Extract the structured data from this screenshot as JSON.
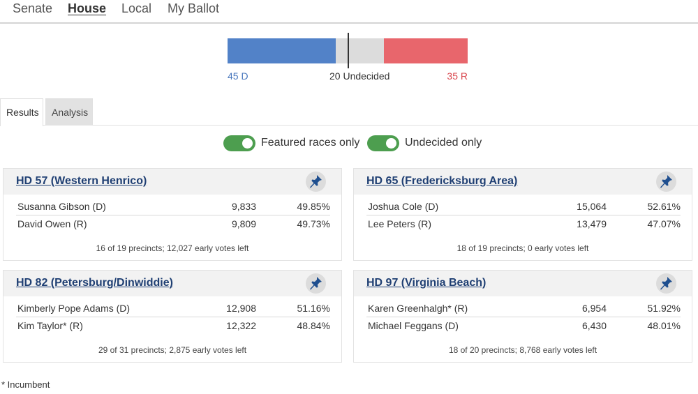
{
  "nav": {
    "items": [
      {
        "label": "Senate"
      },
      {
        "label": "House"
      },
      {
        "label": "Local"
      },
      {
        "label": "My Ballot"
      }
    ],
    "active": "House"
  },
  "balance": {
    "dem_seats": 45,
    "undecided_seats": 20,
    "rep_seats": 35,
    "total_seats": 100,
    "dem_label": "45 D",
    "undecided_label": "20 Undecided",
    "rep_label": "35 R",
    "colors": {
      "dem": "#5282c8",
      "undecided": "#dcdcdc",
      "rep": "#e8666c"
    }
  },
  "tabs": [
    {
      "label": "Results",
      "active": true
    },
    {
      "label": "Analysis",
      "active": false
    }
  ],
  "filters": {
    "featured_label": "Featured races only",
    "featured_on": true,
    "undecided_label": "Undecided only",
    "undecided_on": true,
    "toggle_color": "#4d9e4f"
  },
  "races": [
    {
      "title": "HD 57 (Western Henrico)",
      "candidates": [
        {
          "name": "Susanna Gibson (D)",
          "votes": "9,833",
          "pct": "49.85%"
        },
        {
          "name": "David Owen (R)",
          "votes": "9,809",
          "pct": "49.73%"
        }
      ],
      "footer": "16 of 19 precincts; 12,027 early votes left"
    },
    {
      "title": "HD 65 (Fredericksburg Area)",
      "candidates": [
        {
          "name": "Joshua Cole (D)",
          "votes": "15,064",
          "pct": "52.61%"
        },
        {
          "name": "Lee Peters (R)",
          "votes": "13,479",
          "pct": "47.07%"
        }
      ],
      "footer": "18 of 19 precincts; 0 early votes left"
    },
    {
      "title": "HD 82 (Petersburg/Dinwiddie)",
      "candidates": [
        {
          "name": "Kimberly Pope Adams (D)",
          "votes": "12,908",
          "pct": "51.16%"
        },
        {
          "name": "Kim Taylor* (R)",
          "votes": "12,322",
          "pct": "48.84%"
        }
      ],
      "footer": "29 of 31 precincts; 2,875 early votes left"
    },
    {
      "title": "HD 97 (Virginia Beach)",
      "candidates": [
        {
          "name": "Karen Greenhalgh* (R)",
          "votes": "6,954",
          "pct": "51.92%"
        },
        {
          "name": "Michael Feggans (D)",
          "votes": "6,430",
          "pct": "48.01%"
        }
      ],
      "footer": "18 of 20 precincts; 8,768 early votes left"
    }
  ],
  "footnote": "* Incumbent",
  "icons": {
    "pin": "pushpin-icon"
  }
}
